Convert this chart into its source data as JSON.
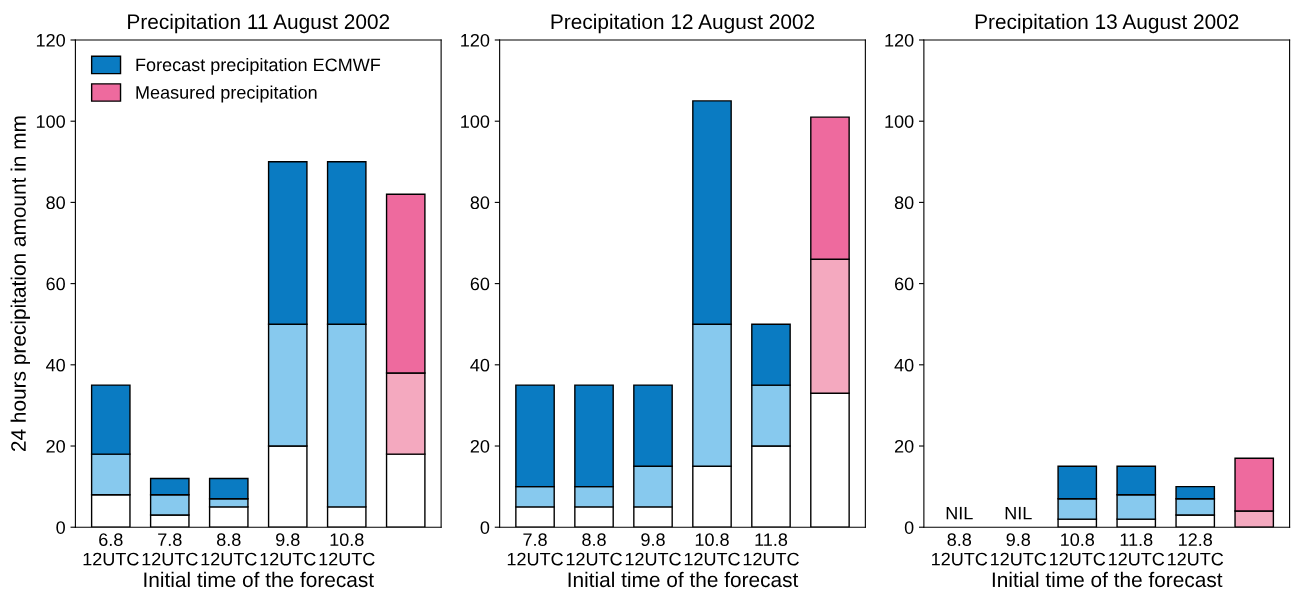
{
  "chart_data": [
    {
      "type": "bar",
      "stacked": true,
      "title": "Precipitation 11 August 2002",
      "xlabel": "Initial time of the forecast",
      "ylabel": "24 hours precipitation amount in mm",
      "categories": [
        "6.8\n12UTC",
        "7.8\n12UTC",
        "8.8\n12UTC",
        "9.8\n12UTC",
        "10.8\n12UTC",
        null
      ],
      "ylim": [
        0,
        120
      ],
      "yticks": [
        0,
        20,
        40,
        60,
        80,
        100,
        120
      ],
      "legend": "top left",
      "grid": false,
      "series": [
        {
          "color": "#ffffff",
          "values": [
            8,
            3,
            5,
            20,
            5,
            null
          ]
        },
        {
          "color": "#87c9ee",
          "values": [
            10,
            5,
            2,
            30,
            45,
            null
          ]
        },
        {
          "name": "Forecast precipitation ECMWF",
          "color": "#0a7bc2",
          "values": [
            17,
            4,
            5,
            40,
            40,
            null
          ]
        },
        {
          "color": "#ffffff",
          "values": [
            null,
            null,
            null,
            null,
            null,
            18
          ]
        },
        {
          "color": "#f4a9bf",
          "values": [
            null,
            null,
            null,
            null,
            null,
            20
          ]
        },
        {
          "name": "Measured precipitation",
          "color": "#ee6a9e",
          "values": [
            null,
            null,
            null,
            null,
            null,
            44
          ]
        }
      ]
    },
    {
      "type": "bar",
      "stacked": true,
      "title": "Precipitation 12 August 2002",
      "xlabel": "Initial time of the forecast",
      "categories": [
        "7.8\n12UTC",
        "8.8\n12UTC",
        "9.8\n12UTC",
        "10.8\n12UTC",
        "11.8\n12UTC",
        null
      ],
      "ylim": [
        0,
        120
      ],
      "yticks": [
        0,
        20,
        40,
        60,
        80,
        100,
        120
      ],
      "grid": false,
      "series": [
        {
          "color": "#ffffff",
          "values": [
            5,
            5,
            5,
            15,
            20,
            null
          ]
        },
        {
          "color": "#87c9ee",
          "values": [
            5,
            5,
            10,
            35,
            15,
            null
          ]
        },
        {
          "color": "#0a7bc2",
          "values": [
            25,
            25,
            20,
            55,
            15,
            null
          ]
        },
        {
          "color": "#ffffff",
          "values": [
            null,
            null,
            null,
            null,
            null,
            33
          ]
        },
        {
          "color": "#f4a9bf",
          "values": [
            null,
            null,
            null,
            null,
            null,
            33
          ]
        },
        {
          "color": "#ee6a9e",
          "values": [
            null,
            null,
            null,
            null,
            null,
            35
          ]
        }
      ]
    },
    {
      "type": "bar",
      "stacked": true,
      "title": "Precipitation 13 August 2002",
      "xlabel": "Initial time of the forecast",
      "categories": [
        "8.8\n12UTC",
        "9.8\n12UTC",
        "10.8\n12UTC",
        "11.8\n12UTC",
        "12.8\n12UTC",
        null
      ],
      "ylim": [
        0,
        120
      ],
      "yticks": [
        0,
        20,
        40,
        60,
        80,
        100,
        120
      ],
      "grid": false,
      "annotations": [
        "NIL",
        "NIL"
      ],
      "series": [
        {
          "color": "#ffffff",
          "values": [
            null,
            null,
            2,
            2,
            3,
            null
          ]
        },
        {
          "color": "#87c9ee",
          "values": [
            null,
            null,
            5,
            6,
            4,
            null
          ]
        },
        {
          "color": "#0a7bc2",
          "values": [
            null,
            null,
            8,
            7,
            3,
            null
          ]
        },
        {
          "color": "#ffffff",
          "values": [
            null,
            null,
            null,
            null,
            null,
            0
          ]
        },
        {
          "color": "#f4a9bf",
          "values": [
            null,
            null,
            null,
            null,
            null,
            4
          ]
        },
        {
          "color": "#ee6a9e",
          "values": [
            null,
            null,
            null,
            null,
            null,
            13
          ]
        }
      ]
    }
  ]
}
